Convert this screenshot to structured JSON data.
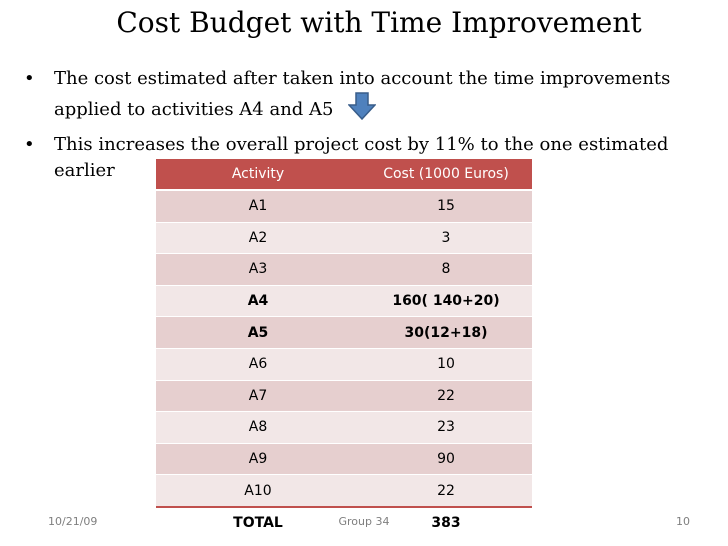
{
  "slide": {
    "title": "Cost Budget with Time Improvement",
    "bullets": [
      {
        "symbol": "•",
        "text_line1": "The cost estimated after taken into account the time improvements",
        "text_line2": "applied to activities A4  and  A5"
      },
      {
        "symbol": "•",
        "text": "This increases the overall project cost by 11% to the one estimated earlier"
      }
    ],
    "arrow_icon": "down-arrow-icon"
  },
  "table": {
    "headers": [
      "Activity",
      "Cost  (1000 Euros)"
    ],
    "rows": [
      {
        "activity": "A1",
        "cost": "15"
      },
      {
        "activity": "A2",
        "cost": "3"
      },
      {
        "activity": "A3",
        "cost": "8"
      },
      {
        "activity": "A4",
        "cost": "160( 140+20)"
      },
      {
        "activity": "A5",
        "cost": "30(12+18)"
      },
      {
        "activity": "A6",
        "cost": "10"
      },
      {
        "activity": "A7",
        "cost": "22"
      },
      {
        "activity": "A8",
        "cost": "23"
      },
      {
        "activity": "A9",
        "cost": "90"
      },
      {
        "activity": "A10",
        "cost": "22"
      },
      {
        "activity": "TOTAL",
        "cost": "383"
      }
    ],
    "header_color": "#c0504d",
    "row_color_odd": "#e6cfcf",
    "row_color_even": "#f2e7e7"
  },
  "footer": {
    "date": "10/21/09",
    "center": "Group 34",
    "page": "10"
  }
}
